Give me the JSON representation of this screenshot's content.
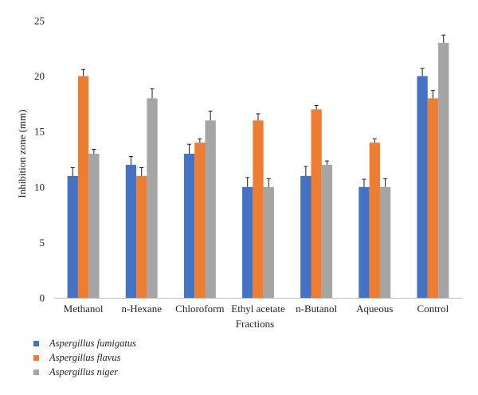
{
  "chart_data": {
    "type": "bar",
    "title": "",
    "xlabel": "Fractions",
    "ylabel": "Inhibition zone (mm)",
    "ylim": [
      0,
      25
    ],
    "yticks": [
      0,
      5,
      10,
      15,
      20,
      25
    ],
    "grid": false,
    "legend_position": "bottom-left",
    "categories": [
      "Methanol",
      "n-Hexane",
      "Chloroform",
      "Ethyl acetate",
      "n-Butanol",
      "Aqueous",
      "Control"
    ],
    "series": [
      {
        "name": "Aspergillus fumigatus",
        "color": "#4472C4",
        "values": [
          11,
          12,
          13,
          10,
          11,
          10,
          20
        ],
        "errors": [
          0.75,
          0.75,
          0.85,
          0.85,
          0.85,
          0.7,
          0.7
        ]
      },
      {
        "name": "Aspergillus flavus",
        "color": "#ED7D31",
        "values": [
          20,
          11,
          14,
          16,
          17,
          14,
          18
        ],
        "errors": [
          0.6,
          0.75,
          0.35,
          0.6,
          0.35,
          0.35,
          0.7
        ]
      },
      {
        "name": "Aspergillus niger",
        "color": "#A5A5A5",
        "values": [
          13,
          18,
          16,
          10,
          12,
          10,
          23
        ],
        "errors": [
          0.4,
          0.85,
          0.85,
          0.75,
          0.35,
          0.75,
          0.7
        ]
      }
    ]
  }
}
